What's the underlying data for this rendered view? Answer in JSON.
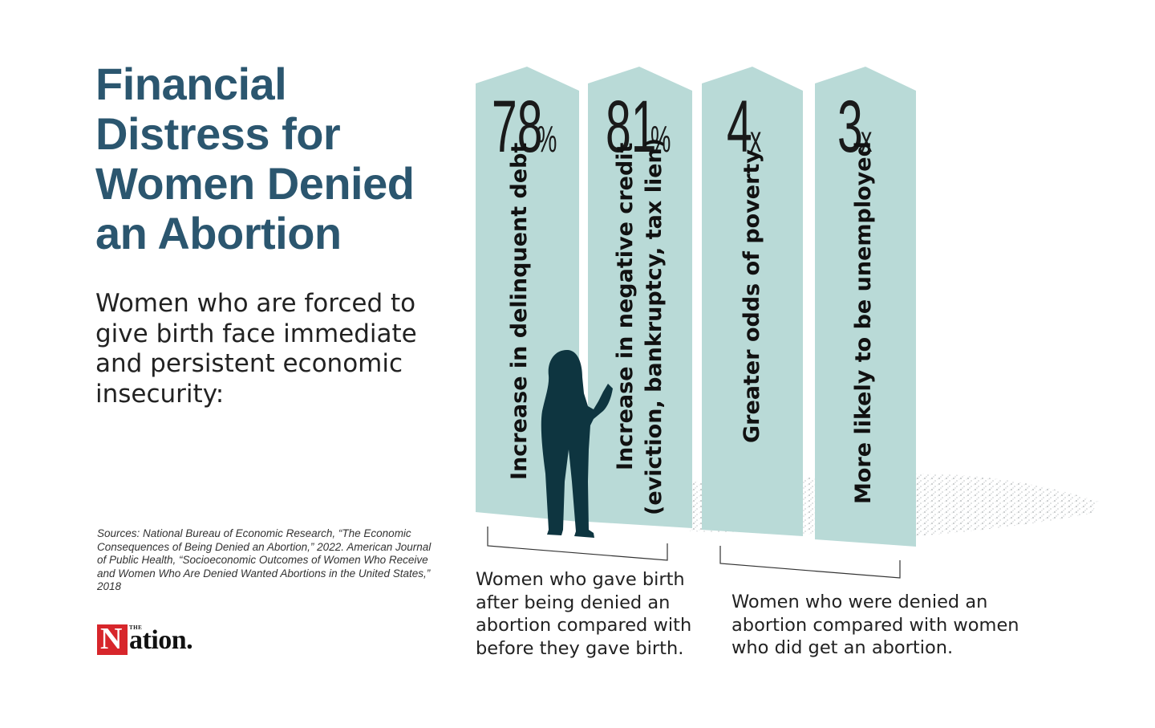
{
  "header": {
    "title": "Financial Distress for Women Denied an Abortion",
    "subtitle": "Women who are forced to give birth face immediate and persistent economic insecurity:"
  },
  "stats": [
    {
      "number": "78",
      "suffix": "%",
      "label": "Increase in delinquent debt",
      "label2": ""
    },
    {
      "number": "81",
      "suffix": "%",
      "label": "Increase in negative credit",
      "label2": "(eviction, bankruptcy, tax lien)"
    },
    {
      "number": "4",
      "suffix": "x",
      "label": "Greater odds of poverty",
      "label2": ""
    },
    {
      "number": "3",
      "suffix": "x",
      "label": "More likely to be unemployed",
      "label2": ""
    }
  ],
  "notes": {
    "left": "Women who gave birth after being denied an abortion compared with before they gave birth.",
    "right": "Women who were denied an abortion compared with women who did get an abortion."
  },
  "sources": "Sources: National Bureau of Economic Research, “The Economic Consequences of Being Denied an Abortion,” 2022. American Journal of Public Health, “Socioeconomic Outcomes of Women Who Receive and Women Who Are Denied Wanted Abortions in the United States,” 2018",
  "logo": {
    "letter": "N",
    "the": "THE",
    "word": "ation."
  },
  "colors": {
    "title": "#2b566f",
    "bar": "#b9dad7",
    "figure": "#0e3540",
    "logo_red": "#d7262b"
  }
}
